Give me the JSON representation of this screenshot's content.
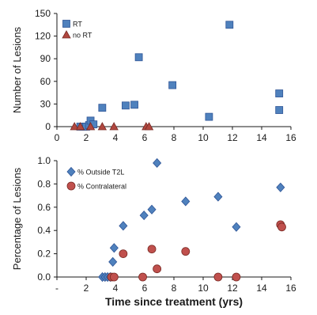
{
  "chart_data": [
    {
      "type": "scatter",
      "ylabel": "Number of Lesions",
      "xlabel": "",
      "xlim": [
        0,
        16
      ],
      "ylim": [
        0,
        150
      ],
      "xticks": [
        "0",
        "2",
        "4",
        "6",
        "8",
        "10",
        "12",
        "14",
        "16"
      ],
      "yticks": [
        "0",
        "30",
        "60",
        "90",
        "120",
        "150"
      ],
      "legend_position": "top-left",
      "series": [
        {
          "name": "RT",
          "marker": "square",
          "color": "#4f81bd",
          "points": [
            {
              "x": 1.6,
              "y": 0
            },
            {
              "x": 1.8,
              "y": 0
            },
            {
              "x": 2.0,
              "y": 0
            },
            {
              "x": 2.2,
              "y": 2
            },
            {
              "x": 2.3,
              "y": 8
            },
            {
              "x": 2.5,
              "y": 3
            },
            {
              "x": 3.1,
              "y": 25
            },
            {
              "x": 4.7,
              "y": 28
            },
            {
              "x": 5.3,
              "y": 29
            },
            {
              "x": 5.6,
              "y": 92
            },
            {
              "x": 7.9,
              "y": 55
            },
            {
              "x": 10.4,
              "y": 13
            },
            {
              "x": 11.8,
              "y": 135
            },
            {
              "x": 15.2,
              "y": 44
            },
            {
              "x": 15.2,
              "y": 22
            }
          ]
        },
        {
          "name": "no RT",
          "marker": "triangle",
          "color": "#b0473f",
          "points": [
            {
              "x": 1.2,
              "y": 0
            },
            {
              "x": 1.6,
              "y": 0
            },
            {
              "x": 2.3,
              "y": 0
            },
            {
              "x": 3.1,
              "y": 0
            },
            {
              "x": 3.9,
              "y": 0
            },
            {
              "x": 6.1,
              "y": 0
            },
            {
              "x": 6.3,
              "y": 0
            }
          ]
        }
      ]
    },
    {
      "type": "scatter",
      "ylabel": "Percentage of Lesions",
      "xlabel": "Time since treatment (yrs)",
      "xlim": [
        -2,
        16
      ],
      "ylim": [
        0,
        1.0
      ],
      "xticks": [
        "-",
        "2",
        "4",
        "6",
        "8",
        "10",
        "12",
        "14",
        "16"
      ],
      "yticks": [
        "0.0",
        "0.2",
        "0.4",
        "0.6",
        "0.8",
        "1.0"
      ],
      "legend_position": "top-left",
      "series": [
        {
          "name": "% Outside T2L",
          "marker": "diamond",
          "color": "#4f81bd",
          "points": [
            {
              "x": 1.5,
              "y": 0
            },
            {
              "x": 1.7,
              "y": 0
            },
            {
              "x": 1.9,
              "y": 0
            },
            {
              "x": 2.1,
              "y": 0
            },
            {
              "x": 2.3,
              "y": 0.13
            },
            {
              "x": 2.4,
              "y": 0.25
            },
            {
              "x": 3.1,
              "y": 0.44
            },
            {
              "x": 4.7,
              "y": 0.53
            },
            {
              "x": 5.3,
              "y": 0.58
            },
            {
              "x": 5.7,
              "y": 0.98
            },
            {
              "x": 7.9,
              "y": 0.65
            },
            {
              "x": 10.4,
              "y": 0.69
            },
            {
              "x": 11.8,
              "y": 0.43
            },
            {
              "x": 15.2,
              "y": 0.77
            }
          ]
        },
        {
          "name": "% Contralateral",
          "marker": "circle",
          "color": "#c0504d",
          "points": [
            {
              "x": 2.2,
              "y": 0
            },
            {
              "x": 2.4,
              "y": 0
            },
            {
              "x": 3.1,
              "y": 0.2
            },
            {
              "x": 4.6,
              "y": 0
            },
            {
              "x": 5.3,
              "y": 0.24
            },
            {
              "x": 5.7,
              "y": 0.07
            },
            {
              "x": 7.9,
              "y": 0.22
            },
            {
              "x": 10.4,
              "y": 0
            },
            {
              "x": 11.8,
              "y": 0
            },
            {
              "x": 15.2,
              "y": 0.45
            },
            {
              "x": 15.3,
              "y": 0.43
            }
          ]
        }
      ]
    }
  ]
}
